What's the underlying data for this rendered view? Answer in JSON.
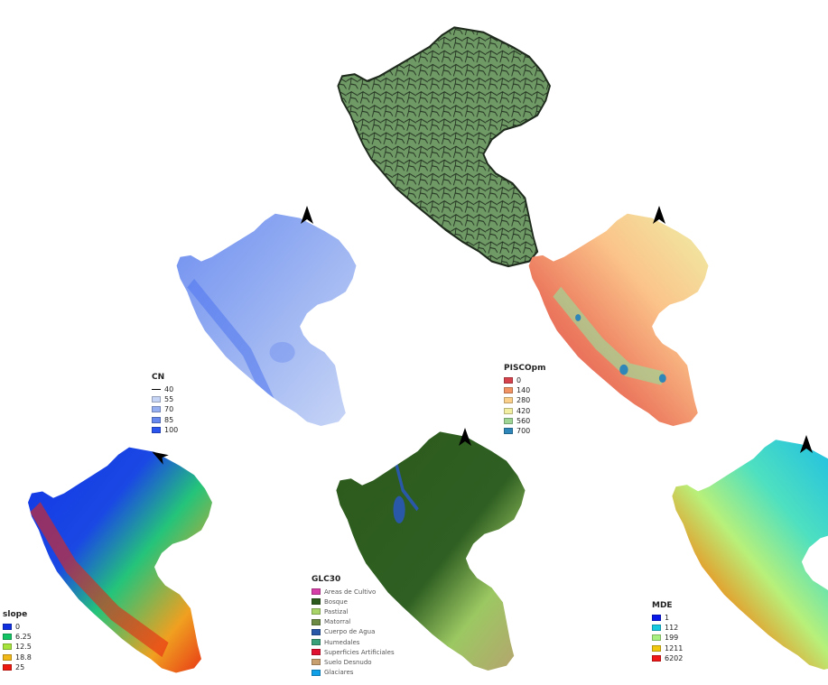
{
  "maps": {
    "cn": {
      "legend_title": "CN",
      "items": [
        {
          "label": "40",
          "color": "#000000",
          "kind": "line"
        },
        {
          "label": "55",
          "color": "#c6d4f5"
        },
        {
          "label": "70",
          "color": "#96aff0"
        },
        {
          "label": "85",
          "color": "#6688ee"
        },
        {
          "label": "100",
          "color": "#2a54ee"
        }
      ]
    },
    "pisco": {
      "legend_title": "PISCOpm",
      "items": [
        {
          "label": "0",
          "color": "#d7434c"
        },
        {
          "label": "140",
          "color": "#f29363"
        },
        {
          "label": "280",
          "color": "#fbd08a"
        },
        {
          "label": "420",
          "color": "#f2efa3"
        },
        {
          "label": "560",
          "color": "#9fd696"
        },
        {
          "label": "700",
          "color": "#2f86b8"
        }
      ]
    },
    "slope": {
      "legend_title": "slope",
      "items": [
        {
          "label": "0",
          "color": "#1030e0"
        },
        {
          "label": "6.25",
          "color": "#14c464"
        },
        {
          "label": "12.5",
          "color": "#a6e43c"
        },
        {
          "label": "18.8",
          "color": "#f0b818"
        },
        {
          "label": "25",
          "color": "#ee1a10"
        }
      ]
    },
    "glc30": {
      "legend_title": "GLC30",
      "items": [
        {
          "label": "Areas de Cultivo",
          "color": "#d73fa8"
        },
        {
          "label": "Bosque",
          "color": "#2c5a1c"
        },
        {
          "label": "Pastizal",
          "color": "#a9d467"
        },
        {
          "label": "Matorral",
          "color": "#6d8a45"
        },
        {
          "label": "Cuerpo de Agua",
          "color": "#2a58a8"
        },
        {
          "label": "Humedales",
          "color": "#3aa07a"
        },
        {
          "label": "Superficies Artificiales",
          "color": "#e01030"
        },
        {
          "label": "Suelo Desnudo",
          "color": "#c8a070"
        },
        {
          "label": "Glaciares",
          "color": "#10a0e8"
        }
      ]
    },
    "mde": {
      "legend_title": "MDE",
      "items": [
        {
          "label": "1",
          "color": "#0818e8"
        },
        {
          "label": "112",
          "color": "#16c8e0"
        },
        {
          "label": "199",
          "color": "#a8f080"
        },
        {
          "label": "1211",
          "color": "#f0c810"
        },
        {
          "label": "6202",
          "color": "#f01818"
        }
      ]
    },
    "basins": {
      "fill": "#6f9a66",
      "stroke": "#1e2a1c"
    }
  },
  "north_arrow_icon": "north-arrow-icon"
}
